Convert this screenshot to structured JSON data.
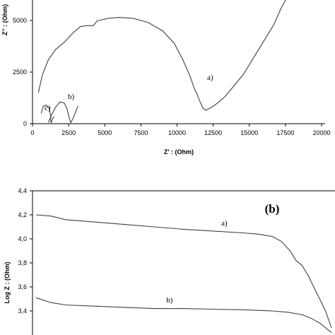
{
  "chart_data": [
    {
      "type": "line",
      "panel": "a",
      "xlabel": "Z' : (Ohm)",
      "ylabel": "Z'' : (Ohm)",
      "xlim": [
        0,
        20000
      ],
      "ylim": [
        0,
        6000
      ],
      "x_ticks": [
        "0",
        "2500",
        "5000",
        "7500",
        "10000",
        "12500",
        "15000",
        "17500",
        "20000"
      ],
      "y_ticks": [
        "0",
        "2500",
        "5000"
      ],
      "series": [
        {
          "name": "a)",
          "x": [
            400,
            700,
            1100,
            1600,
            2200,
            2800,
            3300,
            3700,
            4200,
            4500,
            4600,
            5200,
            6000,
            7000,
            8000,
            9000,
            9800,
            10400,
            10900,
            11200,
            11400,
            11600,
            11800,
            12000,
            12400,
            12800,
            13300,
            13900,
            14600,
            15300,
            16000,
            16700,
            17200,
            17600,
            17800
          ],
          "y": [
            1500,
            2400,
            3100,
            3600,
            3950,
            4400,
            4700,
            4750,
            4750,
            5000,
            5000,
            5100,
            5150,
            5100,
            4900,
            4500,
            3900,
            3100,
            2300,
            1700,
            1400,
            1050,
            750,
            650,
            800,
            1000,
            1300,
            1800,
            2400,
            3200,
            4000,
            4800,
            5600,
            6100,
            6500
          ]
        },
        {
          "name": "b)",
          "x": [
            1100,
            1300,
            1600,
            1900,
            2200,
            2400,
            2550,
            2650,
            2800,
            3000,
            3150
          ],
          "y": [
            50,
            400,
            800,
            1050,
            1000,
            700,
            250,
            50,
            250,
            600,
            850
          ]
        },
        {
          "name": "c)",
          "x": [
            600,
            750,
            950,
            1150,
            1250,
            1280,
            1320,
            1400,
            1500
          ],
          "y": [
            500,
            850,
            900,
            750,
            400,
            50,
            100,
            250,
            350
          ]
        }
      ]
    },
    {
      "type": "line",
      "panel": "b",
      "ylabel": "Log Z : (Ohm)",
      "ylim": [
        3.2,
        4.4
      ],
      "y_ticks": [
        "4,4",
        "4,2",
        "4,0",
        "3,8",
        "3,6",
        "3,4"
      ],
      "panel_label": "(b)",
      "series": [
        {
          "name": "a)",
          "x": [
            0,
            0.05,
            0.1,
            0.2,
            0.3,
            0.4,
            0.5,
            0.6,
            0.7,
            0.75,
            0.8,
            0.83,
            0.86,
            0.88,
            0.9,
            0.92,
            0.94,
            0.96,
            0.98,
            1.0
          ],
          "y": [
            4.2,
            4.19,
            4.16,
            4.14,
            4.12,
            4.1,
            4.08,
            4.065,
            4.05,
            4.04,
            4.02,
            3.98,
            3.9,
            3.82,
            3.78,
            3.7,
            3.6,
            3.5,
            3.4,
            3.26
          ]
        },
        {
          "name": "b)",
          "x": [
            0,
            0.05,
            0.1,
            0.2,
            0.3,
            0.4,
            0.5,
            0.6,
            0.7,
            0.8,
            0.85,
            0.9,
            0.93,
            0.96,
            0.98,
            1.0
          ],
          "y": [
            3.51,
            3.47,
            3.45,
            3.44,
            3.43,
            3.42,
            3.42,
            3.415,
            3.41,
            3.4,
            3.39,
            3.37,
            3.34,
            3.3,
            3.26,
            3.22
          ]
        }
      ]
    }
  ]
}
